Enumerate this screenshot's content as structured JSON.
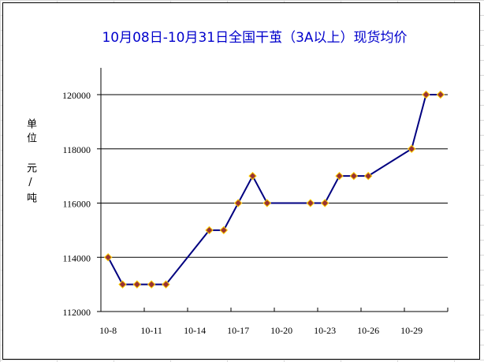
{
  "chart_data": {
    "type": "line",
    "title": "10月08日-10月31日全国干茧（3A以上）现货均价",
    "ylabel": "单位 元/吨",
    "xlabel": "",
    "ylim": [
      112000,
      120000
    ],
    "yticks": [
      "112000",
      "114000",
      "116000",
      "118000",
      "120000"
    ],
    "xlim": [
      "10-8",
      "10-31"
    ],
    "xticks": [
      "10-8",
      "10-11",
      "10-14",
      "10-17",
      "10-20",
      "10-23",
      "10-26",
      "10-29"
    ],
    "grid": "horizontal",
    "legend": "none",
    "line_color": "#000080",
    "marker_color": "#993333",
    "marker_edge_color": "#ffcc00",
    "title_color": "#0000cc",
    "x": [
      "10-8",
      "10-9",
      "10-10",
      "10-11",
      "10-12",
      "10-15",
      "10-16",
      "10-17",
      "10-18",
      "10-19",
      "10-22",
      "10-23",
      "10-24",
      "10-25",
      "10-26",
      "10-29",
      "10-30",
      "10-31"
    ],
    "values": [
      114000,
      113000,
      113000,
      113000,
      113000,
      115000,
      115000,
      116000,
      117000,
      116000,
      116000,
      116000,
      117000,
      117000,
      117000,
      118000,
      120000,
      120000
    ]
  }
}
